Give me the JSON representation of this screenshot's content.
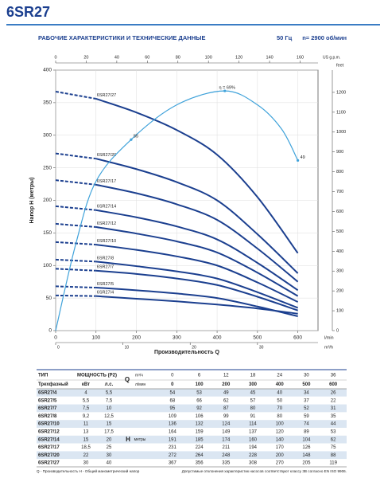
{
  "header": {
    "title": "6SR27",
    "subtitle": "РАБОЧИЕ ХАРАКТЕРИСТИКИ И ТЕХНИЧЕСКИЕ ДАННЫЕ",
    "freq": "50 Гц",
    "speed": "n= 2900 об/мин"
  },
  "chart_data": {
    "type": "line",
    "y_label": "Напор H (метры)",
    "x_label": "Производительность Q",
    "x_unit": "l/min",
    "y2_unit": "feet",
    "x2_unit": "US g.p.m.",
    "x3_unit": "m³/h",
    "x": [
      0,
      100,
      200,
      300,
      400,
      500,
      600
    ],
    "xlim": [
      0,
      650
    ],
    "xticks": [
      0,
      100,
      200,
      300,
      400,
      500,
      600
    ],
    "ylim": [
      0,
      400
    ],
    "yticks": [
      0,
      50,
      100,
      150,
      200,
      250,
      300,
      350,
      400
    ],
    "y2lim": [
      0,
      1312
    ],
    "y2ticks": [
      0,
      100,
      200,
      300,
      400,
      500,
      600,
      700,
      800,
      900,
      1000,
      1100,
      1200
    ],
    "x2lim": [
      0,
      171.7
    ],
    "x2ticks": [
      0,
      20,
      40,
      60,
      80,
      100,
      120,
      140,
      160
    ],
    "x3lim": [
      0,
      39
    ],
    "x3ticks": [
      0,
      10,
      20,
      30
    ],
    "grid": true,
    "series": [
      {
        "name": "6SR27/27",
        "color": "#1b3f8f",
        "values": [
          367,
          356,
          335,
          308,
          270,
          205,
          119
        ]
      },
      {
        "name": "6SR27/20",
        "color": "#1b3f8f",
        "values": [
          272,
          264,
          248,
          228,
          200,
          148,
          88
        ]
      },
      {
        "name": "6SR27/17",
        "color": "#1b3f8f",
        "values": [
          231,
          224,
          211,
          194,
          170,
          126,
          75
        ]
      },
      {
        "name": "6SR27/14",
        "color": "#1b3f8f",
        "values": [
          191,
          185,
          174,
          160,
          140,
          104,
          62
        ]
      },
      {
        "name": "6SR27/12",
        "color": "#1b3f8f",
        "values": [
          164,
          159,
          149,
          137,
          120,
          89,
          53
        ]
      },
      {
        "name": "6SR27/10",
        "color": "#1b3f8f",
        "values": [
          136,
          132,
          124,
          114,
          100,
          74,
          44
        ]
      },
      {
        "name": "6SR27/8",
        "color": "#1b3f8f",
        "values": [
          109,
          106,
          99,
          91,
          80,
          59,
          35
        ]
      },
      {
        "name": "6SR27/7",
        "color": "#1b3f8f",
        "values": [
          95,
          92,
          87,
          80,
          70,
          52,
          31
        ]
      },
      {
        "name": "6SR27/5",
        "color": "#1b3f8f",
        "values": [
          68,
          66,
          62,
          57,
          50,
          37,
          22
        ]
      },
      {
        "name": "6SR27/4",
        "color": "#1b3f8f",
        "values": [
          54,
          53,
          49,
          45,
          40,
          34,
          26
        ]
      }
    ],
    "efficiency": {
      "color": "#3fa2da",
      "y3lim": [
        0,
        75
      ],
      "x": [
        0,
        50,
        100,
        187,
        300,
        419,
        500,
        560,
        600
      ],
      "values": [
        0,
        25,
        43,
        55,
        65,
        69,
        65,
        58,
        49
      ],
      "value_labels": [
        null,
        null,
        null,
        "55",
        null,
        "η = 69%",
        null,
        null,
        "49"
      ]
    }
  },
  "table": {
    "type_header": "ТИП",
    "power_header": "МОЩНОСТЬ (P2)",
    "q_label": "Q",
    "m3h_unit": "m³/ч",
    "lmin_unit": "л/мин",
    "phase": "Трехфазный",
    "kw": "кВт",
    "hp": "л.с.",
    "h_label": "H",
    "h_unit": "метры",
    "m3h": [
      0,
      6,
      12,
      18,
      24,
      30,
      36
    ],
    "lmin": [
      0,
      100,
      200,
      300,
      400,
      500,
      600
    ],
    "rows": [
      {
        "name": "6SR27/4",
        "kw": 4,
        "hp": "5,5",
        "h": [
          54,
          53,
          49,
          45,
          40,
          34,
          26
        ]
      },
      {
        "name": "6SR27/5",
        "kw": "5,5",
        "hp": "7,5",
        "h": [
          68,
          66,
          62,
          57,
          50,
          37,
          22
        ]
      },
      {
        "name": "6SR27/7",
        "kw": "7,5",
        "hp": 10,
        "h": [
          95,
          92,
          87,
          80,
          70,
          52,
          31
        ]
      },
      {
        "name": "6SR27/8",
        "kw": "9,2",
        "hp": "12,5",
        "h": [
          109,
          106,
          99,
          91,
          80,
          59,
          35
        ]
      },
      {
        "name": "6SR27/10",
        "kw": 11,
        "hp": 15,
        "h": [
          136,
          132,
          124,
          114,
          100,
          74,
          44
        ]
      },
      {
        "name": "6SR27/12",
        "kw": 13,
        "hp": "17,5",
        "h": [
          164,
          159,
          149,
          137,
          120,
          89,
          53
        ]
      },
      {
        "name": "6SR27/14",
        "kw": 15,
        "hp": 20,
        "h": [
          191,
          185,
          174,
          160,
          140,
          104,
          62
        ]
      },
      {
        "name": "6SR27/17",
        "kw": "18,5",
        "hp": 25,
        "h": [
          231,
          224,
          211,
          194,
          170,
          126,
          75
        ]
      },
      {
        "name": "6SR27/20",
        "kw": 22,
        "hp": 30,
        "h": [
          272,
          264,
          248,
          228,
          200,
          148,
          88
        ]
      },
      {
        "name": "6SR27/27",
        "kw": 30,
        "hp": 40,
        "h": [
          367,
          356,
          335,
          308,
          270,
          205,
          119
        ]
      }
    ],
    "footnote_left": "Q - Производительность   H - Общий манометрический напор",
    "footnote_right": "Допустимые отклонения характеристик насосов соответствуют классу 3B согласно EN ISO 9906."
  }
}
